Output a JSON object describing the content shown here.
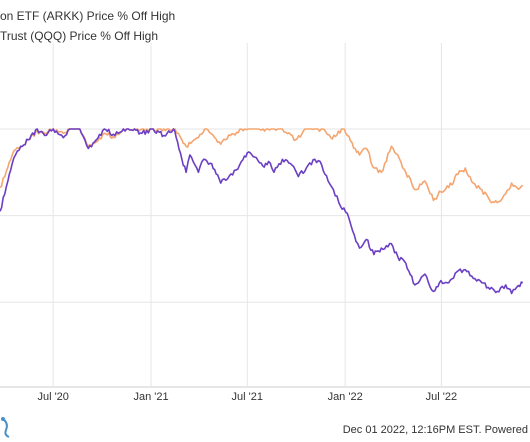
{
  "chart_data": {
    "type": "line",
    "title": "",
    "xlabel": "",
    "ylabel": "",
    "x_ticks": [
      "Jul '20",
      "Jan '21",
      "Jul '21",
      "Jan '22",
      "Jul '22"
    ],
    "grid": true,
    "legend_placement": "top-left",
    "series": [
      {
        "name": "on ETF (ARKK) Price % Off High",
        "color": "#6b3fc4",
        "points": [
          [
            "2020-03-23",
            -38
          ],
          [
            "2020-04-01",
            -30
          ],
          [
            "2020-04-15",
            -16
          ],
          [
            "2020-05-01",
            -8
          ],
          [
            "2020-05-15",
            -5
          ],
          [
            "2020-06-01",
            0
          ],
          [
            "2020-06-15",
            -3
          ],
          [
            "2020-07-01",
            0
          ],
          [
            "2020-07-20",
            -4
          ],
          [
            "2020-08-01",
            0
          ],
          [
            "2020-08-20",
            0
          ],
          [
            "2020-09-05",
            -9
          ],
          [
            "2020-09-20",
            -5
          ],
          [
            "2020-10-05",
            0
          ],
          [
            "2020-10-25",
            -3
          ],
          [
            "2020-11-10",
            0
          ],
          [
            "2020-12-01",
            0
          ],
          [
            "2020-12-15",
            -2
          ],
          [
            "2021-01-05",
            0
          ],
          [
            "2021-01-25",
            -3
          ],
          [
            "2021-02-12",
            0
          ],
          [
            "2021-02-20",
            -6
          ],
          [
            "2021-02-28",
            -14
          ],
          [
            "2021-03-08",
            -20
          ],
          [
            "2021-03-15",
            -12
          ],
          [
            "2021-03-31",
            -20
          ],
          [
            "2021-04-10",
            -14
          ],
          [
            "2021-04-25",
            -16
          ],
          [
            "2021-05-12",
            -25
          ],
          [
            "2021-05-25",
            -23
          ],
          [
            "2021-06-10",
            -19
          ],
          [
            "2021-06-20",
            -15
          ],
          [
            "2021-07-01",
            -11
          ],
          [
            "2021-07-15",
            -13
          ],
          [
            "2021-07-30",
            -17
          ],
          [
            "2021-08-10",
            -15
          ],
          [
            "2021-08-20",
            -20
          ],
          [
            "2021-09-05",
            -14
          ],
          [
            "2021-09-20",
            -16
          ],
          [
            "2021-10-05",
            -22
          ],
          [
            "2021-10-20",
            -18
          ],
          [
            "2021-11-05",
            -14
          ],
          [
            "2021-11-15",
            -15
          ],
          [
            "2021-11-30",
            -24
          ],
          [
            "2021-12-10",
            -28
          ],
          [
            "2021-12-20",
            -34
          ],
          [
            "2022-01-05",
            -39
          ],
          [
            "2022-01-15",
            -47
          ],
          [
            "2022-01-28",
            -55
          ],
          [
            "2022-02-10",
            -51
          ],
          [
            "2022-02-24",
            -58
          ],
          [
            "2022-03-10",
            -55
          ],
          [
            "2022-03-29",
            -53
          ],
          [
            "2022-04-10",
            -59
          ],
          [
            "2022-04-25",
            -62
          ],
          [
            "2022-05-12",
            -72
          ],
          [
            "2022-05-31",
            -67
          ],
          [
            "2022-06-16",
            -75
          ],
          [
            "2022-06-30",
            -70
          ],
          [
            "2022-07-15",
            -71
          ],
          [
            "2022-07-30",
            -66
          ],
          [
            "2022-08-15",
            -65
          ],
          [
            "2022-08-30",
            -69
          ],
          [
            "2022-09-15",
            -71
          ],
          [
            "2022-09-30",
            -74
          ],
          [
            "2022-10-14",
            -75
          ],
          [
            "2022-10-30",
            -72
          ],
          [
            "2022-11-10",
            -76
          ],
          [
            "2022-11-20",
            -73
          ],
          [
            "2022-12-01",
            -71
          ]
        ]
      },
      {
        "name": "Trust (QQQ) Price % Off High",
        "color": "#f4a570",
        "points": [
          [
            "2020-03-23",
            -27
          ],
          [
            "2020-04-01",
            -22
          ],
          [
            "2020-04-15",
            -12
          ],
          [
            "2020-05-01",
            -8
          ],
          [
            "2020-05-15",
            -5
          ],
          [
            "2020-06-01",
            -1
          ],
          [
            "2020-06-15",
            -2
          ],
          [
            "2020-07-01",
            0
          ],
          [
            "2020-07-20",
            -2
          ],
          [
            "2020-08-01",
            0
          ],
          [
            "2020-08-20",
            0
          ],
          [
            "2020-09-05",
            -8
          ],
          [
            "2020-09-20",
            -6
          ],
          [
            "2020-10-05",
            -2
          ],
          [
            "2020-10-25",
            -4
          ],
          [
            "2020-11-10",
            0
          ],
          [
            "2020-12-01",
            0
          ],
          [
            "2020-12-15",
            0
          ],
          [
            "2021-01-05",
            0
          ],
          [
            "2021-01-25",
            0
          ],
          [
            "2021-02-12",
            0
          ],
          [
            "2021-02-28",
            -5
          ],
          [
            "2021-03-08",
            -8
          ],
          [
            "2021-03-31",
            -4
          ],
          [
            "2021-04-15",
            0
          ],
          [
            "2021-05-12",
            -7
          ],
          [
            "2021-05-30",
            -3
          ],
          [
            "2021-06-20",
            0
          ],
          [
            "2021-07-15",
            0
          ],
          [
            "2021-08-15",
            0
          ],
          [
            "2021-09-05",
            0
          ],
          [
            "2021-09-30",
            -5
          ],
          [
            "2021-10-20",
            0
          ],
          [
            "2021-11-20",
            0
          ],
          [
            "2021-12-05",
            -4
          ],
          [
            "2021-12-28",
            0
          ],
          [
            "2022-01-05",
            -3
          ],
          [
            "2022-01-20",
            -9
          ],
          [
            "2022-01-28",
            -12
          ],
          [
            "2022-02-10",
            -9
          ],
          [
            "2022-02-24",
            -18
          ],
          [
            "2022-03-10",
            -20
          ],
          [
            "2022-03-29",
            -8
          ],
          [
            "2022-04-10",
            -12
          ],
          [
            "2022-04-25",
            -20
          ],
          [
            "2022-05-12",
            -28
          ],
          [
            "2022-05-31",
            -24
          ],
          [
            "2022-06-16",
            -33
          ],
          [
            "2022-06-30",
            -29
          ],
          [
            "2022-07-15",
            -27
          ],
          [
            "2022-08-01",
            -21
          ],
          [
            "2022-08-15",
            -18
          ],
          [
            "2022-08-30",
            -25
          ],
          [
            "2022-09-15",
            -28
          ],
          [
            "2022-09-30",
            -33
          ],
          [
            "2022-10-14",
            -34
          ],
          [
            "2022-10-30",
            -30
          ],
          [
            "2022-11-10",
            -25
          ],
          [
            "2022-11-20",
            -27
          ],
          [
            "2022-12-01",
            -26
          ]
        ]
      }
    ]
  },
  "footer": {
    "text": "Dec 01 2022, 12:16PM EST. Powered",
    "logo_icon": "ycharts-logo-icon"
  }
}
